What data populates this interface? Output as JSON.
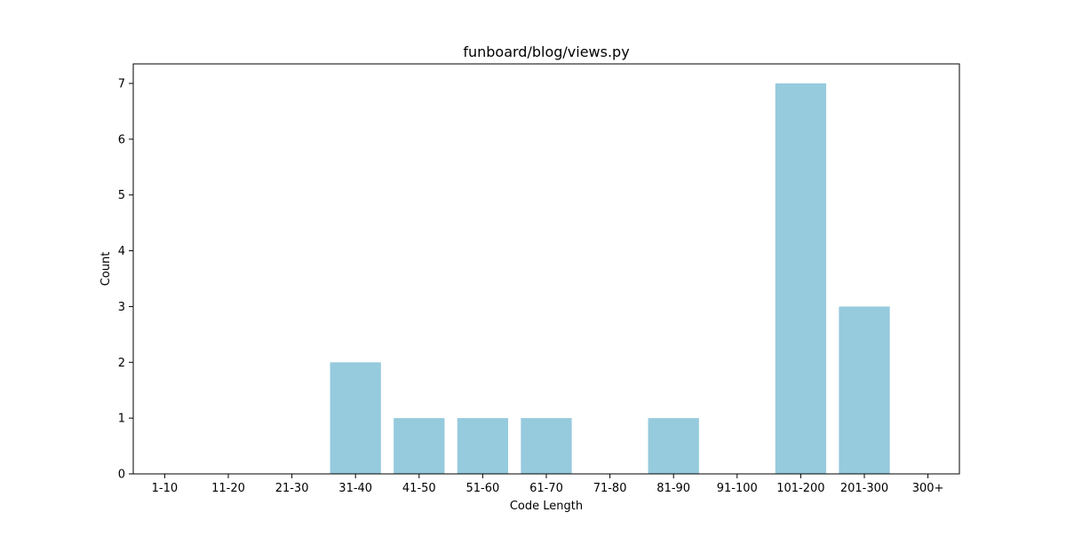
{
  "chart_data": {
    "type": "bar",
    "title": "funboard/blog/views.py",
    "xlabel": "Code Length",
    "ylabel": "Count",
    "categories": [
      "1-10",
      "11-20",
      "21-30",
      "31-40",
      "41-50",
      "51-60",
      "61-70",
      "71-80",
      "81-90",
      "91-100",
      "101-200",
      "201-300",
      "300+"
    ],
    "values": [
      0,
      0,
      0,
      2,
      1,
      1,
      1,
      0,
      1,
      0,
      7,
      3,
      0
    ],
    "ylim": [
      0,
      7.35
    ],
    "yticks": [
      0,
      1,
      2,
      3,
      4,
      5,
      6,
      7
    ],
    "bar_color": "#96cadd",
    "grid": false,
    "legend": "none"
  }
}
